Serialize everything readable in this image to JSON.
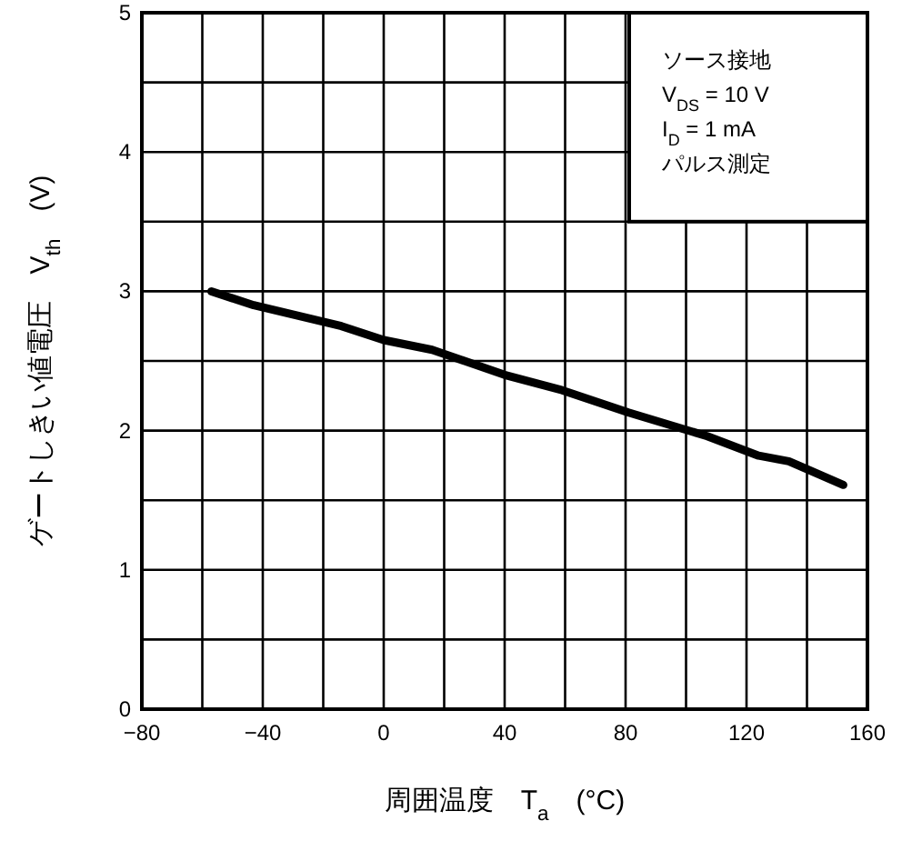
{
  "chart_data": {
    "type": "line",
    "xlabel": "周囲温度　T$_{a}$　(°C)",
    "ylabel": "ゲートしきい値電圧　V$_{th}$　(V)",
    "annotations": [
      "ソース接地",
      "V$_{DS}$ = 10 V",
      "I$_{D}$ = 1 mA",
      "パルス測定"
    ],
    "x": [
      -57,
      -43,
      -14,
      0,
      16,
      40,
      59,
      81,
      107,
      124,
      134,
      152
    ],
    "series": [
      {
        "color": "#000000",
        "values": [
          3.0,
          2.9,
          2.75,
          2.65,
          2.58,
          2.4,
          2.29,
          2.13,
          1.96,
          1.82,
          1.78,
          1.61
        ]
      }
    ],
    "xlim": [
      -80,
      160
    ],
    "ylim": [
      0,
      5
    ],
    "xticks": [
      -80,
      {
        "value": -60,
        "label": null
      },
      -40,
      {
        "value": -20,
        "label": null
      },
      0,
      {
        "value": 20,
        "label": null
      },
      40,
      {
        "value": 60,
        "label": null
      },
      80,
      {
        "value": 100,
        "label": null
      },
      120,
      {
        "value": 140,
        "label": null
      },
      160
    ],
    "yticks": [
      0,
      {
        "value": 0.5,
        "label": null
      },
      1,
      {
        "value": 1.5,
        "label": null
      },
      2,
      {
        "value": 2.5,
        "label": null
      },
      3,
      {
        "value": 3.5,
        "label": null
      },
      4,
      {
        "value": 4.5,
        "label": null
      },
      5
    ],
    "grid": true,
    "marker": "none",
    "line_style": "solid"
  }
}
